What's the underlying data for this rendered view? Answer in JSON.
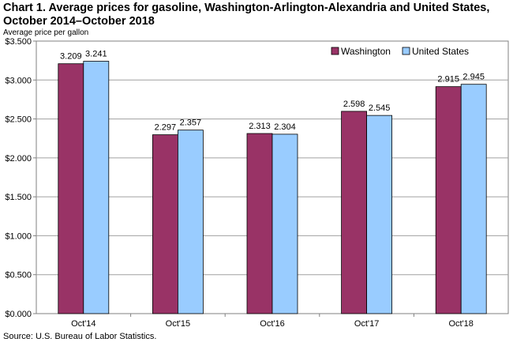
{
  "title_line1": "Chart 1. Average prices for gasoline, Washington-Arlington-Alexandria and United States,",
  "title_line2": "October 2014–October 2018",
  "source": "Source: U.S. Bureau of Labor Statistics.",
  "chart_data": {
    "type": "bar",
    "ylabel": "Average price per gallon",
    "xlabel": "",
    "categories": [
      "Oct'14",
      "Oct'15",
      "Oct'16",
      "Oct'17",
      "Oct'18"
    ],
    "series": [
      {
        "name": "Washington",
        "color": "#993366",
        "values": [
          3.209,
          2.297,
          2.313,
          2.598,
          2.915
        ]
      },
      {
        "name": "United States",
        "color": "#99ccff",
        "values": [
          3.241,
          2.357,
          2.304,
          2.545,
          2.945
        ]
      }
    ],
    "ylim": [
      0,
      3.5
    ],
    "yticks": [
      "$0.000",
      "$0.500",
      "$1.000",
      "$1.500",
      "$2.000",
      "$2.500",
      "$3.000",
      "$3.500"
    ],
    "ytick_values": [
      0,
      0.5,
      1.0,
      1.5,
      2.0,
      2.5,
      3.0,
      3.5
    ],
    "data_labels": [
      [
        "3.209",
        "2.297",
        "2.313",
        "2.598",
        "2.915"
      ],
      [
        "3.241",
        "2.357",
        "2.304",
        "2.545",
        "2.945"
      ]
    ],
    "grid": true,
    "legend": "top-right"
  }
}
